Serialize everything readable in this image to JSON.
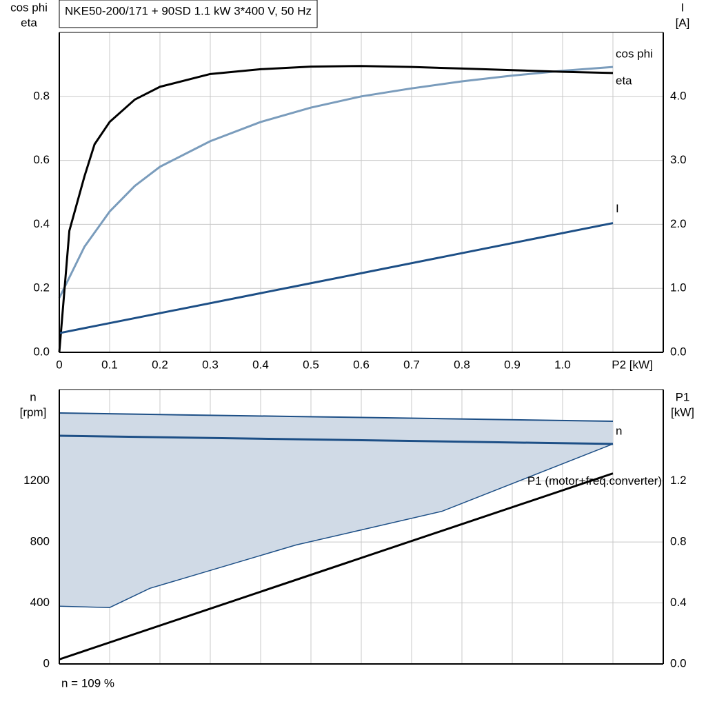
{
  "chart_data": [
    {
      "type": "line",
      "title": "NKE50-200/171 + 90SD   1.1 kW   3*400 V, 50 Hz",
      "ylabel": [
        "cos phi",
        "eta"
      ],
      "y2label": [
        "I",
        "[A]"
      ],
      "xlim": [
        0,
        1.2
      ],
      "xticks": [
        0,
        0.1,
        0.2,
        0.3,
        0.4,
        0.5,
        0.6,
        0.7,
        0.8,
        0.9,
        {
          "value": 1,
          "label": "1.0"
        },
        {
          "value": 1.1,
          "label": "P2 [kW]"
        }
      ],
      "xtick_labels": true,
      "ylim": [
        0,
        1
      ],
      "yticks": [
        {
          "value": 0,
          "label": "0.0"
        },
        0.2,
        0.4,
        0.6,
        0.8
      ],
      "y2lim": [
        0,
        5
      ],
      "y2ticks": [
        {
          "value": 0,
          "label": "0.0"
        },
        {
          "value": 1,
          "label": "1.0"
        },
        {
          "value": 2,
          "label": "2.0"
        },
        {
          "value": 3,
          "label": "3.0"
        },
        {
          "value": 4,
          "label": "4.0"
        }
      ],
      "grid": true,
      "series": [
        {
          "name": "cos phi",
          "color": "#7a9cbc",
          "x": [
            0,
            0.05,
            0.1,
            0.15,
            0.2,
            0.3,
            0.4,
            0.5,
            0.6,
            0.7,
            0.8,
            0.9,
            1.0,
            1.1
          ],
          "values": [
            0.17,
            0.33,
            0.44,
            0.52,
            0.58,
            0.66,
            0.72,
            0.765,
            0.8,
            0.825,
            0.847,
            0.865,
            0.88,
            0.892
          ]
        },
        {
          "name": "eta",
          "color": "#000000",
          "x": [
            0,
            0.02,
            0.05,
            0.07,
            0.1,
            0.15,
            0.2,
            0.3,
            0.4,
            0.5,
            0.6,
            0.7,
            0.8,
            0.9,
            1.0,
            1.1
          ],
          "values": [
            0,
            0.38,
            0.55,
            0.65,
            0.72,
            0.79,
            0.83,
            0.87,
            0.885,
            0.893,
            0.895,
            0.892,
            0.887,
            0.882,
            0.877,
            0.873
          ]
        },
        {
          "name": "I",
          "color": "#1d4f86",
          "axis": "y2",
          "x": [
            0,
            0.5,
            1.1
          ],
          "values": [
            0.3,
            1.08,
            2.02
          ]
        }
      ]
    },
    {
      "type": "line",
      "ylabel": [
        "n",
        "[rpm]"
      ],
      "y2label": [
        "P1",
        "[kW]"
      ],
      "annotation": "n = 109 %",
      "xlim": [
        0,
        1.2
      ],
      "xticks": [
        0,
        0.1,
        0.2,
        0.3,
        0.4,
        0.5,
        0.6,
        0.7,
        0.8,
        0.9,
        1.0,
        1.1
      ],
      "xtick_labels": false,
      "ylim": [
        0,
        1800
      ],
      "yticks": [
        0,
        400,
        800,
        1200
      ],
      "y2lim": [
        0,
        1.8
      ],
      "y2ticks": [
        {
          "value": 0,
          "label": "0.0"
        },
        0.4,
        0.8,
        1.2
      ],
      "grid": true,
      "band": {
        "color": "#d0dae6",
        "edge": "#1d4f86",
        "x": [
          0,
          0.1,
          0.18,
          0.47,
          0.76,
          1.1
        ],
        "upper": [
          1646,
          1641,
          1637,
          1623,
          1609,
          1592
        ],
        "lower": [
          379,
          370,
          496,
          780,
          1001,
          1443
        ]
      },
      "series": [
        {
          "name": "n",
          "color": "#1d4f86",
          "x": [
            0,
            1.1
          ],
          "values": [
            1497,
            1443
          ]
        },
        {
          "name": "P1 (motor+freq.converter)",
          "color": "#000000",
          "axis": "y2",
          "x": [
            0,
            1.1
          ],
          "values": [
            0.03,
            1.25
          ]
        }
      ]
    }
  ]
}
